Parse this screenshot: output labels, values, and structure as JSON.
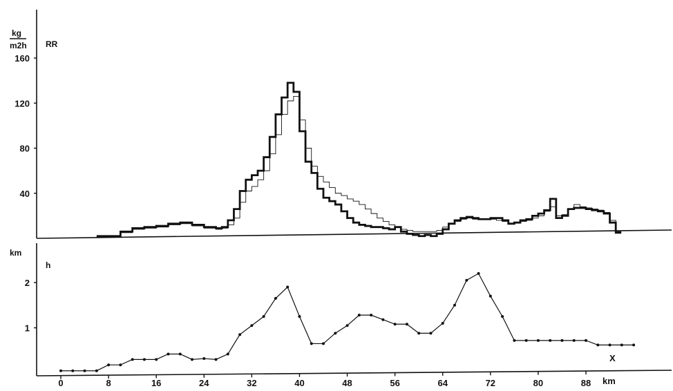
{
  "chart_data": [
    {
      "type": "line",
      "panel": "top",
      "unit_numerator": "kg",
      "unit_denominator": "m2h",
      "series_label": "RR",
      "ylim": [
        0,
        160
      ],
      "yticks": [
        "40",
        "80",
        "120",
        "160"
      ],
      "ytick_values": [
        40,
        80,
        120,
        160
      ],
      "x": [
        0,
        4,
        6,
        8,
        10,
        12,
        14,
        16,
        18,
        20,
        22,
        24,
        26,
        27,
        28,
        29,
        30,
        31,
        32,
        33,
        34,
        35,
        36,
        37,
        38,
        39,
        40,
        41,
        42,
        43,
        44,
        45,
        46,
        47,
        48,
        49,
        50,
        51,
        52,
        53,
        54,
        55,
        56,
        57,
        58,
        59,
        60,
        61,
        62,
        63,
        64,
        65,
        66,
        67,
        68,
        69,
        70,
        71,
        72,
        73,
        74,
        75,
        76,
        77,
        78,
        79,
        80,
        81,
        82,
        83,
        84,
        85,
        86,
        87,
        88,
        89,
        90,
        91,
        92,
        93
      ],
      "series": [
        {
          "style": "thick",
          "values": [
            null,
            null,
            2,
            2,
            6,
            9,
            10,
            11,
            13,
            14,
            12,
            10,
            9,
            10,
            16,
            26,
            42,
            52,
            56,
            60,
            72,
            90,
            110,
            125,
            138,
            130,
            95,
            68,
            58,
            44,
            36,
            33,
            30,
            24,
            18,
            14,
            12,
            11,
            10,
            10,
            9,
            8,
            10,
            6,
            4,
            3,
            2,
            3,
            2,
            4,
            8,
            13,
            16,
            18,
            19,
            18,
            17,
            17,
            18,
            18,
            16,
            13,
            14,
            16,
            17,
            20,
            22,
            25,
            35,
            18,
            20,
            26,
            27,
            27,
            26,
            25,
            24,
            22,
            14,
            5
          ]
        },
        {
          "style": "thin",
          "values": [
            null,
            null,
            1,
            1,
            5,
            8,
            9,
            10,
            12,
            13,
            11,
            9,
            8,
            9,
            12,
            18,
            32,
            42,
            46,
            52,
            60,
            75,
            92,
            110,
            122,
            126,
            105,
            80,
            64,
            55,
            50,
            45,
            40,
            38,
            35,
            33,
            30,
            26,
            22,
            18,
            15,
            12,
            10,
            8,
            7,
            6,
            6,
            6,
            6,
            7,
            10,
            13,
            15,
            17,
            18,
            17,
            17,
            17,
            17,
            16,
            15,
            13,
            14,
            15,
            16,
            18,
            20,
            24,
            28,
            20,
            21,
            26,
            30,
            28,
            27,
            26,
            25,
            23,
            16,
            6
          ]
        }
      ]
    },
    {
      "type": "line",
      "panel": "bottom",
      "unit_label": "km",
      "series_label": "h",
      "ylim": [
        0,
        2.4
      ],
      "yticks": [
        "1",
        "2"
      ],
      "ytick_values": [
        1,
        2
      ],
      "xlabel": "km",
      "x_marker": "X",
      "xticks": [
        "0",
        "8",
        "16",
        "24",
        "32",
        "40",
        "48",
        "56",
        "64",
        "72",
        "80",
        "88"
      ],
      "xtick_values": [
        0,
        8,
        16,
        24,
        32,
        40,
        48,
        56,
        64,
        72,
        80,
        88
      ],
      "xlim": [
        0,
        103
      ],
      "points": {
        "x": [
          0,
          2,
          4,
          6,
          8,
          10,
          12,
          14,
          16,
          18,
          20,
          22,
          24,
          26,
          28,
          30,
          32,
          34,
          36,
          38,
          40,
          42,
          44,
          46,
          48,
          50,
          52,
          54,
          56,
          58,
          60,
          62,
          64,
          66,
          68,
          70,
          72,
          74,
          76,
          78,
          80,
          82,
          84,
          86,
          88,
          90,
          92,
          94,
          96
        ],
        "y": [
          0.05,
          0.05,
          0.05,
          0.05,
          0.18,
          0.18,
          0.3,
          0.3,
          0.3,
          0.42,
          0.42,
          0.3,
          0.32,
          0.3,
          0.42,
          0.85,
          1.05,
          1.25,
          1.65,
          1.9,
          1.25,
          0.65,
          0.65,
          0.88,
          1.05,
          1.28,
          1.28,
          1.18,
          1.08,
          1.08,
          0.88,
          0.88,
          1.1,
          1.5,
          2.05,
          2.2,
          1.7,
          1.25,
          0.72,
          0.72,
          0.72,
          0.72,
          0.72,
          0.72,
          0.72,
          0.62,
          0.62,
          0.62,
          0.62
        ]
      }
    }
  ]
}
